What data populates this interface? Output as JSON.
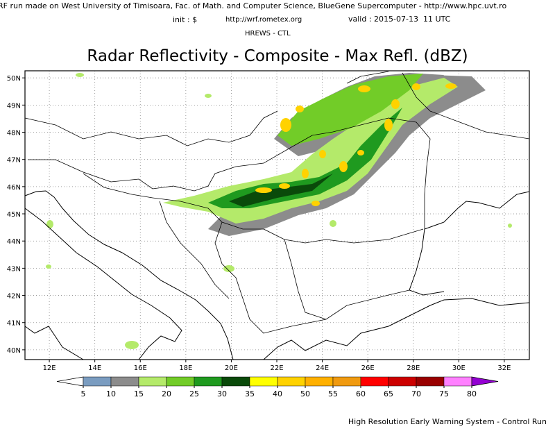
{
  "header": {
    "credit": "RF run made on West University of Timisoara, Fac. of Math. and Computer Science, BlueGene Supercomputer - http://www.hpc.uvt.ro",
    "init": "init : $",
    "url": "http://wrf.rometex.org",
    "valid": "valid : 2015-07-13  11 UTC",
    "run": "HREWS - CTL",
    "title": "Radar Reflectivity - Composite - Max Refl. (dBZ)"
  },
  "map": {
    "lonlim": [
      10.93,
      33.1
    ],
    "latlim": [
      39.64,
      50.26
    ],
    "lat_ticks": [
      {
        "value": 50,
        "label": "50N"
      },
      {
        "value": 49,
        "label": "49N"
      },
      {
        "value": 48,
        "label": "48N"
      },
      {
        "value": 47,
        "label": "47N"
      },
      {
        "value": 46,
        "label": "46N"
      },
      {
        "value": 45,
        "label": "45N"
      },
      {
        "value": 44,
        "label": "44N"
      },
      {
        "value": 43,
        "label": "43N"
      },
      {
        "value": 42,
        "label": "42N"
      },
      {
        "value": 41,
        "label": "41N"
      },
      {
        "value": 40,
        "label": "40N"
      }
    ],
    "lon_ticks": [
      {
        "value": 12,
        "label": "12E"
      },
      {
        "value": 14,
        "label": "14E"
      },
      {
        "value": 16,
        "label": "16E"
      },
      {
        "value": 18,
        "label": "18E"
      },
      {
        "value": 20,
        "label": "20E"
      },
      {
        "value": 22,
        "label": "22E"
      },
      {
        "value": 24,
        "label": "24E"
      },
      {
        "value": 26,
        "label": "26E"
      },
      {
        "value": 28,
        "label": "28E"
      },
      {
        "value": 30,
        "label": "30E"
      },
      {
        "value": 32,
        "label": "32E"
      }
    ],
    "grid": true
  },
  "colorbar": {
    "ticks": [
      5,
      10,
      15,
      20,
      25,
      30,
      35,
      40,
      50,
      55,
      60,
      65,
      70,
      75,
      80
    ],
    "colors": [
      "#7a9cc0",
      "#8c8c8c",
      "#b4ea6a",
      "#72cc28",
      "#1f9a1f",
      "#0a4a0a",
      "#ffff00",
      "#ffd200",
      "#ffb000",
      "#f09a10",
      "#ff0000",
      "#cc0000",
      "#990000",
      "#ff80ff"
    ],
    "under_color": "#ffffff",
    "over_color": "#9400d3"
  },
  "footer": "High Resolution Early Warning System - Control Run"
}
